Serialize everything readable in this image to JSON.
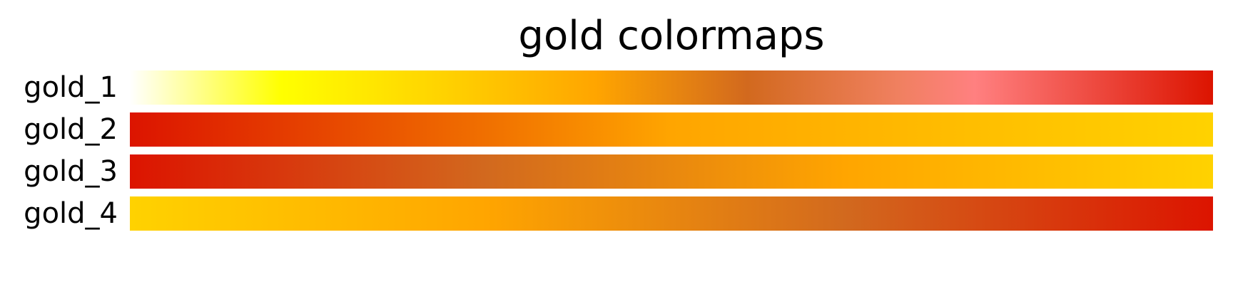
{
  "chart_data": {
    "type": "colormap",
    "title": "gold colormaps",
    "grid": false,
    "legend": "none",
    "series": [
      {
        "name": "gold_1",
        "stops": [
          {
            "offset": 0.0,
            "color": "#ffffff"
          },
          {
            "offset": 0.14,
            "color": "#ffff00"
          },
          {
            "offset": 0.29,
            "color": "#ffd200"
          },
          {
            "offset": 0.43,
            "color": "#ffa500"
          },
          {
            "offset": 0.57,
            "color": "#d2691e"
          },
          {
            "offset": 0.71,
            "color": "#f08060"
          },
          {
            "offset": 0.78,
            "color": "#ff8080"
          },
          {
            "offset": 1.0,
            "color": "#dc1400"
          }
        ]
      },
      {
        "name": "gold_2",
        "stops": [
          {
            "offset": 0.0,
            "color": "#dc1400"
          },
          {
            "offset": 0.33,
            "color": "#f07000"
          },
          {
            "offset": 0.5,
            "color": "#ffa500"
          },
          {
            "offset": 1.0,
            "color": "#ffd200"
          }
        ]
      },
      {
        "name": "gold_3",
        "stops": [
          {
            "offset": 0.0,
            "color": "#dc1400"
          },
          {
            "offset": 0.33,
            "color": "#d2691e"
          },
          {
            "offset": 0.66,
            "color": "#ffa500"
          },
          {
            "offset": 1.0,
            "color": "#ffd200"
          }
        ]
      },
      {
        "name": "gold_4",
        "stops": [
          {
            "offset": 0.0,
            "color": "#ffd200"
          },
          {
            "offset": 0.33,
            "color": "#ffa500"
          },
          {
            "offset": 0.66,
            "color": "#d2691e"
          },
          {
            "offset": 1.0,
            "color": "#dc1400"
          }
        ]
      }
    ]
  }
}
